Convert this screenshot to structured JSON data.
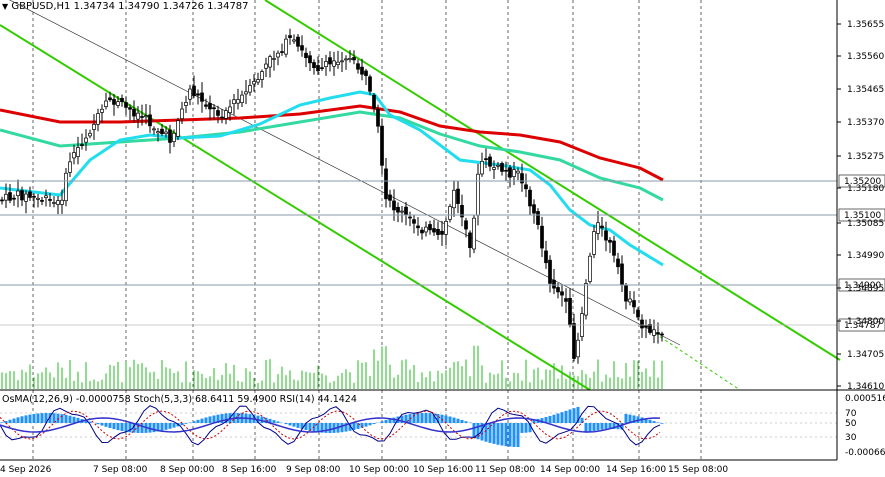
{
  "header": {
    "symbol_line": "GBPUSD,H1  1.34734 1.34790 1.34726 1.34787",
    "indicator_line": "OsMA(12,26,9) -0.0000758  Stoch(5,3,3) 68.6411 59.4900  RSI(14) 44.1424"
  },
  "price_axis": [
    "1.35655",
    "1.35560",
    "1.35465",
    "1.35370",
    "1.35275",
    "1.35180",
    "1.35085",
    "1.34990",
    "1.34895",
    "1.34800",
    "1.34705",
    "1.34610"
  ],
  "price_tags": [
    {
      "text": "1.35200",
      "kind": "level"
    },
    {
      "text": "1.35100",
      "kind": "level"
    },
    {
      "text": "1.34900",
      "kind": "level"
    },
    {
      "text": "1.34787",
      "kind": "current"
    }
  ],
  "sub_axis": [
    "0.000516",
    "70",
    "50",
    "30",
    "-0.000660"
  ],
  "time_axis": [
    "4 Sep 2026",
    "7 Sep 08:00",
    "8 Sep 00:00",
    "8 Sep 16:00",
    "9 Sep 08:00",
    "10 Sep 00:00",
    "10 Sep 16:00",
    "11 Sep 08:00",
    "14 Sep 00:00",
    "14 Sep 16:00",
    "15 Sep 08:00"
  ],
  "colors": {
    "bull_candle": "#ffffff",
    "bear_candle": "#000000",
    "channel": "#33cc00",
    "ma_slow": "#dd0000",
    "ma_mid": "#33d9a0",
    "ma_fast": "#22ddee",
    "osma": "#1e90ff",
    "stoch_main": "#00008b",
    "stoch_signal": "#cc0000",
    "rsi": "#3333cc",
    "volume": "#22bb22",
    "grid": "#000000"
  },
  "chart_data": {
    "type": "candlestick",
    "symbol": "GBPUSD",
    "timeframe": "H1",
    "last_bar": {
      "open": 1.34734,
      "high": 1.3479,
      "low": 1.34726,
      "close": 1.34787
    },
    "ylim": [
      1.3458,
      1.3572
    ],
    "levels": [
      1.352,
      1.351,
      1.349
    ],
    "indicators": {
      "osma": {
        "params": "12,26,9",
        "value": -7.58e-05
      },
      "stoch": {
        "params": "5,3,3",
        "main": 68.6411,
        "signal": 59.49
      },
      "rsi": {
        "params": "14",
        "value": 44.1424
      }
    }
  }
}
